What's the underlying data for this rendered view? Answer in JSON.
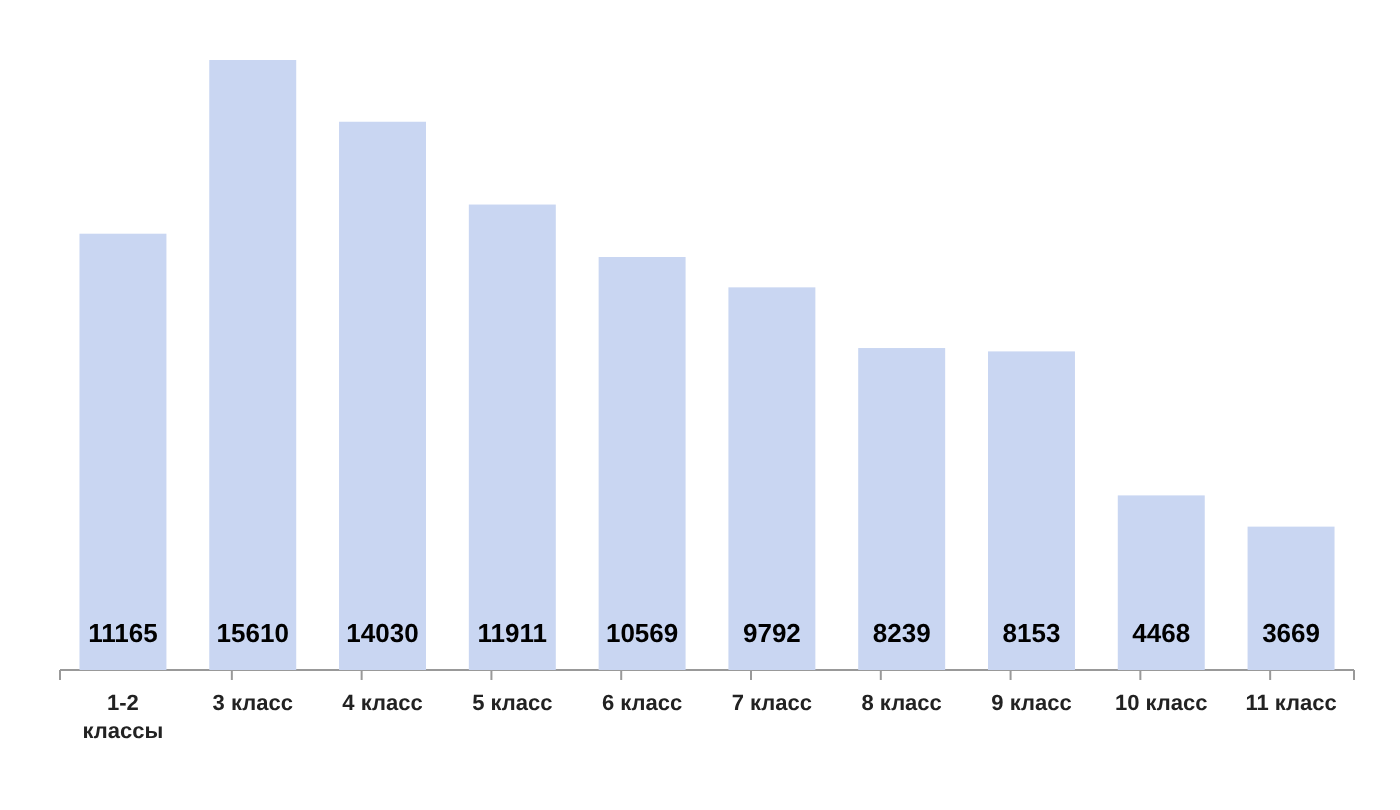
{
  "chart_data": {
    "type": "bar",
    "categories": [
      "1-2 классы",
      "3 класс",
      "4 класс",
      "5 класс",
      "6 класс",
      "7 класс",
      "8 класс",
      "9 класс",
      "10 класс",
      "11 класс"
    ],
    "values": [
      11165,
      15610,
      14030,
      11911,
      10569,
      9792,
      8239,
      8153,
      4468,
      3669
    ],
    "color": "#c9d6f2",
    "data_labels": true
  }
}
